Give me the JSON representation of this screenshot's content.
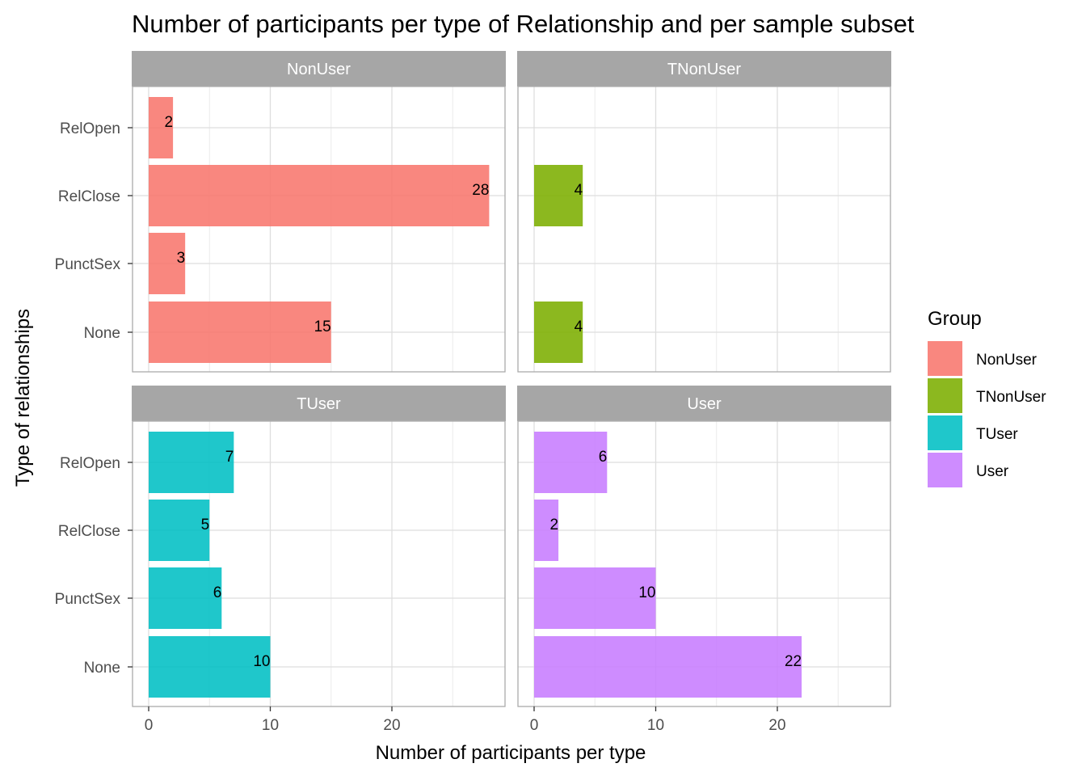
{
  "chart_data": {
    "type": "bar",
    "orientation": "horizontal",
    "title": "Number of participants per type of Relationship and per sample subset",
    "xlabel": "Number of participants per type",
    "ylabel": "Type of relationships",
    "categories": [
      "RelOpen",
      "RelClose",
      "PunctSex",
      "None"
    ],
    "xlim": [
      0,
      28
    ],
    "xticks": [
      0,
      10,
      20
    ],
    "grid": true,
    "legend_position": "right",
    "legend": {
      "title": "Group",
      "entries": [
        {
          "label": "NonUser",
          "color": "#F8766D"
        },
        {
          "label": "TNonUser",
          "color": "#7CAE00"
        },
        {
          "label": "TUser",
          "color": "#00BFC4"
        },
        {
          "label": "User",
          "color": "#C77CFF"
        }
      ]
    },
    "panels": [
      {
        "name": "NonUser",
        "color": "#F8766D",
        "values": [
          2,
          28,
          3,
          15
        ]
      },
      {
        "name": "TNonUser",
        "color": "#7CAE00",
        "values": [
          null,
          4,
          null,
          4
        ]
      },
      {
        "name": "TUser",
        "color": "#00BFC4",
        "values": [
          7,
          5,
          6,
          10
        ]
      },
      {
        "name": "User",
        "color": "#C77CFF",
        "values": [
          6,
          2,
          10,
          22
        ]
      }
    ]
  }
}
